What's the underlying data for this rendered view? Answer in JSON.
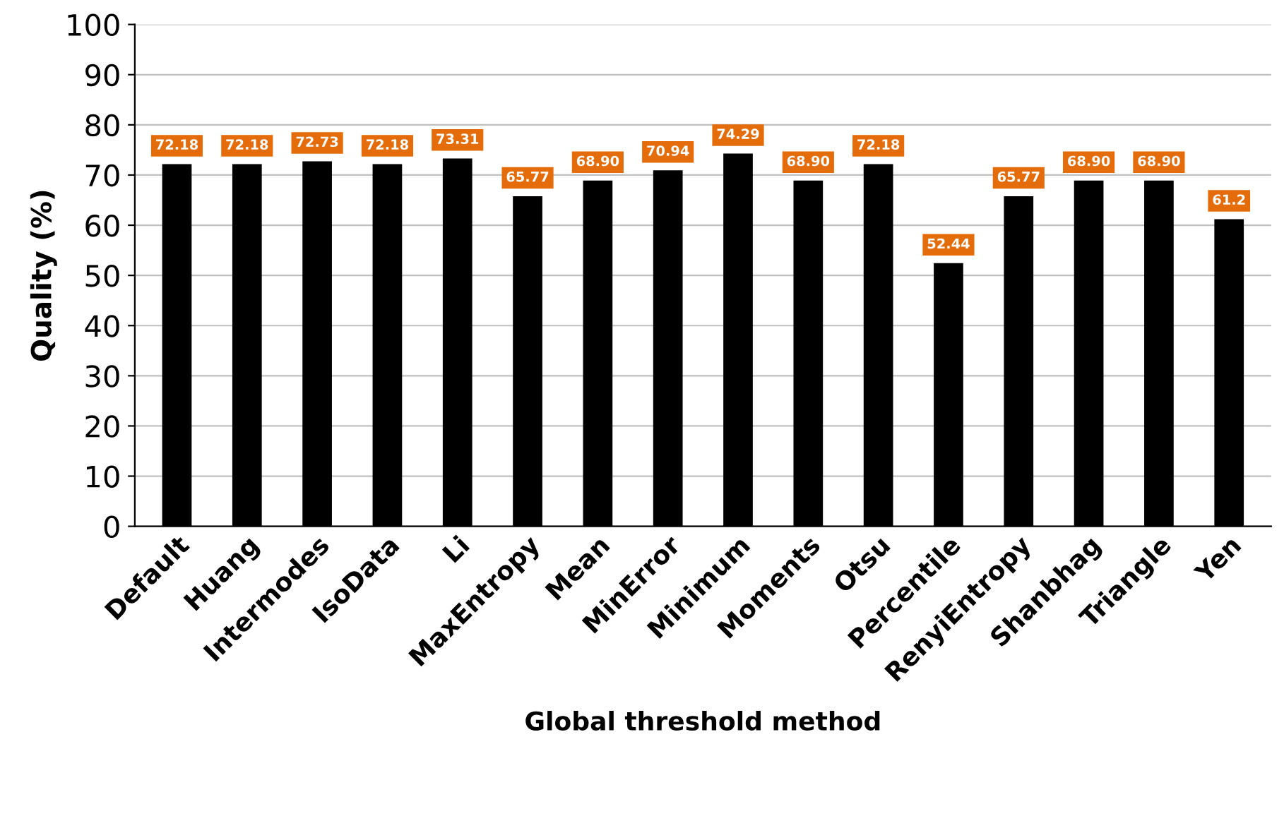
{
  "chart_data": {
    "type": "bar",
    "xlabel": "Global threshold method",
    "ylabel": "Quality (%)",
    "categories": [
      "Default",
      "Huang",
      "Intermodes",
      "IsoData",
      "Li",
      "MaxEntropy",
      "Mean",
      "MinError",
      "Minimum",
      "Moments",
      "Otsu",
      "Percentile",
      "RenyiEntropy",
      "Shanbhag",
      "Triangle",
      "Yen"
    ],
    "values": [
      72.18,
      72.18,
      72.73,
      72.18,
      73.31,
      65.77,
      68.9,
      70.94,
      74.29,
      68.9,
      72.18,
      52.44,
      65.77,
      68.9,
      68.9,
      61.2
    ],
    "value_labels": [
      "72.18",
      "72.18",
      "72.73",
      "72.18",
      "73.31",
      "65.77",
      "68.90",
      "70.94",
      "74.29",
      "68.90",
      "72.18",
      "52.44",
      "65.77",
      "68.90",
      "68.90",
      "61.2"
    ],
    "color": "#000000",
    "ylim": [
      0,
      100
    ],
    "yticks": [
      0,
      10,
      20,
      30,
      40,
      50,
      60,
      70,
      80,
      90,
      100
    ],
    "grid": "y"
  }
}
